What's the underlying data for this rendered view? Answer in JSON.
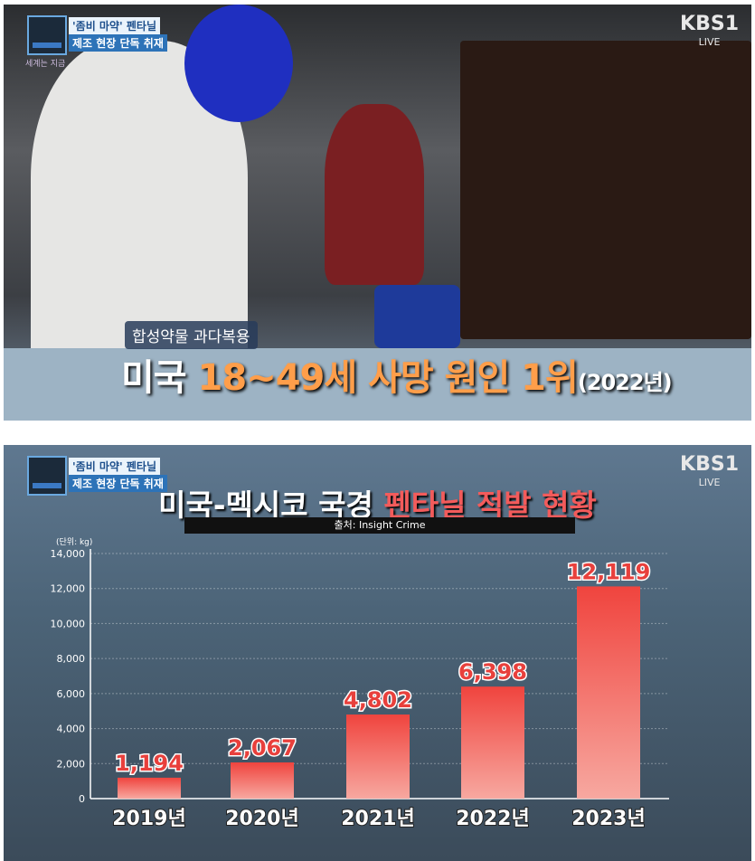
{
  "top": {
    "tag1": "'좀비 마약' 펜타닐",
    "tag2": "제조 현장 단독 취재",
    "program": "세계는 지금",
    "logo": "KBS1",
    "live": "LIVE",
    "caption_label": "합성약물 과다복용",
    "caption_prefix": "미국",
    "caption_highlight": "18~49세 사망 원인 1위",
    "caption_year": "(2022년)"
  },
  "bottom": {
    "tag1": "'좀비 마약' 펜타닐",
    "tag2": "제조 현장 단독 취재",
    "logo": "KBS1",
    "live": "LIVE"
  },
  "chart_data": {
    "type": "bar",
    "title_plain": "미국-멕시코 국경",
    "title_highlight": "펜타닐 적발 현황",
    "source": "출처: Insight Crime",
    "unit": "(단위: kg)",
    "categories": [
      "2019년",
      "2020년",
      "2021년",
      "2022년",
      "2023년"
    ],
    "values": [
      1194,
      2067,
      4802,
      6398,
      12119
    ],
    "value_labels": [
      "1,194",
      "2,067",
      "4,802",
      "6,398",
      "12,119"
    ],
    "yticks": [
      "0",
      "2,000",
      "4,000",
      "6,000",
      "8,000",
      "10,000",
      "12,000",
      "14,000"
    ],
    "ylim": [
      0,
      14000
    ],
    "grid": true,
    "bar_color": "#e8403c"
  }
}
